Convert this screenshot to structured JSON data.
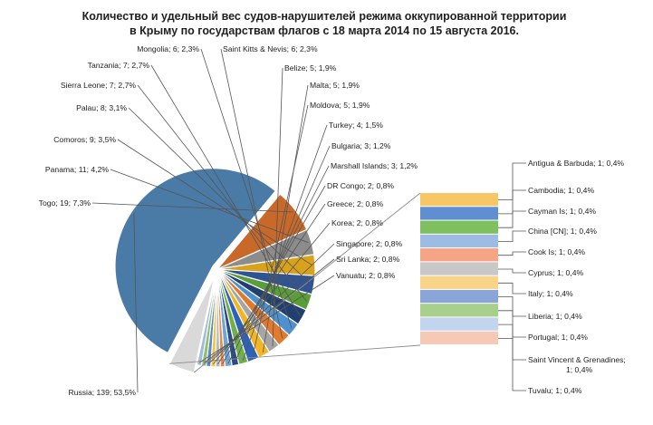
{
  "chart_data": {
    "type": "pie",
    "subtype": "pie-of-bar",
    "title_lines": [
      "Количество и удельный вес судов-нарушителей режима оккупированной территории",
      "в Крыму по государствам флагов с 18 марта 2014 по 15 августа 2016."
    ],
    "label_format": "{name}; {value}; {percent}",
    "slices": [
      {
        "name": "Russia",
        "value": 139,
        "percent": "53,5%",
        "color": "#4a7ba7"
      },
      {
        "name": "Togo",
        "value": 19,
        "percent": "7,3%",
        "color": "#c8692a"
      },
      {
        "name": "Panama",
        "value": 11,
        "percent": "4,2%",
        "color": "#8c8c8c"
      },
      {
        "name": "Comoros",
        "value": 9,
        "percent": "3,5%",
        "color": "#d9a21c"
      },
      {
        "name": "Palau",
        "value": 8,
        "percent": "3,1%",
        "color": "#2f5496"
      },
      {
        "name": "Sierra Leone",
        "value": 7,
        "percent": "2,7%",
        "color": "#5a9e3a"
      },
      {
        "name": "Tanzania",
        "value": 7,
        "percent": "2,7%",
        "color": "#22406f"
      },
      {
        "name": "Mongolia",
        "value": 6,
        "percent": "2,3%",
        "color": "#4f91cf"
      },
      {
        "name": "Saint Kitts & Nevis",
        "value": 6,
        "percent": "2,3%",
        "color": "#e07a2e"
      },
      {
        "name": "Belize",
        "value": 5,
        "percent": "1,9%",
        "color": "#a5a5a5"
      },
      {
        "name": "Malta",
        "value": 5,
        "percent": "1,9%",
        "color": "#f0b628"
      },
      {
        "name": "Moldova",
        "value": 5,
        "percent": "1,9%",
        "color": "#2e62b8"
      },
      {
        "name": "Turkey",
        "value": 4,
        "percent": "1,5%",
        "color": "#6fb04a"
      },
      {
        "name": "Bulgaria",
        "value": 3,
        "percent": "1,2%",
        "color": "#2b4a85"
      },
      {
        "name": "Marshall Islands",
        "value": 3,
        "percent": "1,2%",
        "color": "#6da6d9"
      },
      {
        "name": "DR Congo",
        "value": 2,
        "percent": "0,8%",
        "color": "#ec8a45"
      },
      {
        "name": "Greece",
        "value": 2,
        "percent": "0,8%",
        "color": "#b9b9b9"
      },
      {
        "name": "Korea",
        "value": 2,
        "percent": "0,8%",
        "color": "#f4c544"
      },
      {
        "name": "Singapore",
        "value": 2,
        "percent": "0,8%",
        "color": "#5b86c9"
      },
      {
        "name": "Sri Lanka",
        "value": 2,
        "percent": "0,8%",
        "color": "#8cc16a"
      },
      {
        "name": "Vanuatu",
        "value": 2,
        "percent": "0,8%",
        "color": "#9fb9e0"
      }
    ],
    "other_slice_color": "#d9d9d9",
    "bar_items": [
      {
        "name": "Antigua & Barbuda",
        "value": 1,
        "percent": "0,4%",
        "color": "#f6c764"
      },
      {
        "name": "Cambodia",
        "value": 1,
        "percent": "0,4%",
        "color": "#5f8fd0"
      },
      {
        "name": "Cayman Is",
        "value": 1,
        "percent": "0,4%",
        "color": "#7fbf5f"
      },
      {
        "name": "China [CN]",
        "value": 1,
        "percent": "0,4%",
        "color": "#9dbbe3"
      },
      {
        "name": "Cook Is",
        "value": 1,
        "percent": "0,4%",
        "color": "#f3a585"
      },
      {
        "name": "Cyprus",
        "value": 1,
        "percent": "0,4%",
        "color": "#c8c8c8"
      },
      {
        "name": "Italy",
        "value": 1,
        "percent": "0,4%",
        "color": "#f8d488"
      },
      {
        "name": "Liberia",
        "value": 1,
        "percent": "0,4%",
        "color": "#8aa6d8"
      },
      {
        "name": "Portugal",
        "value": 1,
        "percent": "0,4%",
        "color": "#a8cf8c"
      },
      {
        "name": "Saint Vincent & Grenadines",
        "value": 1,
        "percent": "0,4%",
        "color": "#c2d4ee"
      },
      {
        "name": "Tuvalu",
        "value": 1,
        "percent": "0,4%",
        "color": "#f6c9b6"
      }
    ]
  }
}
